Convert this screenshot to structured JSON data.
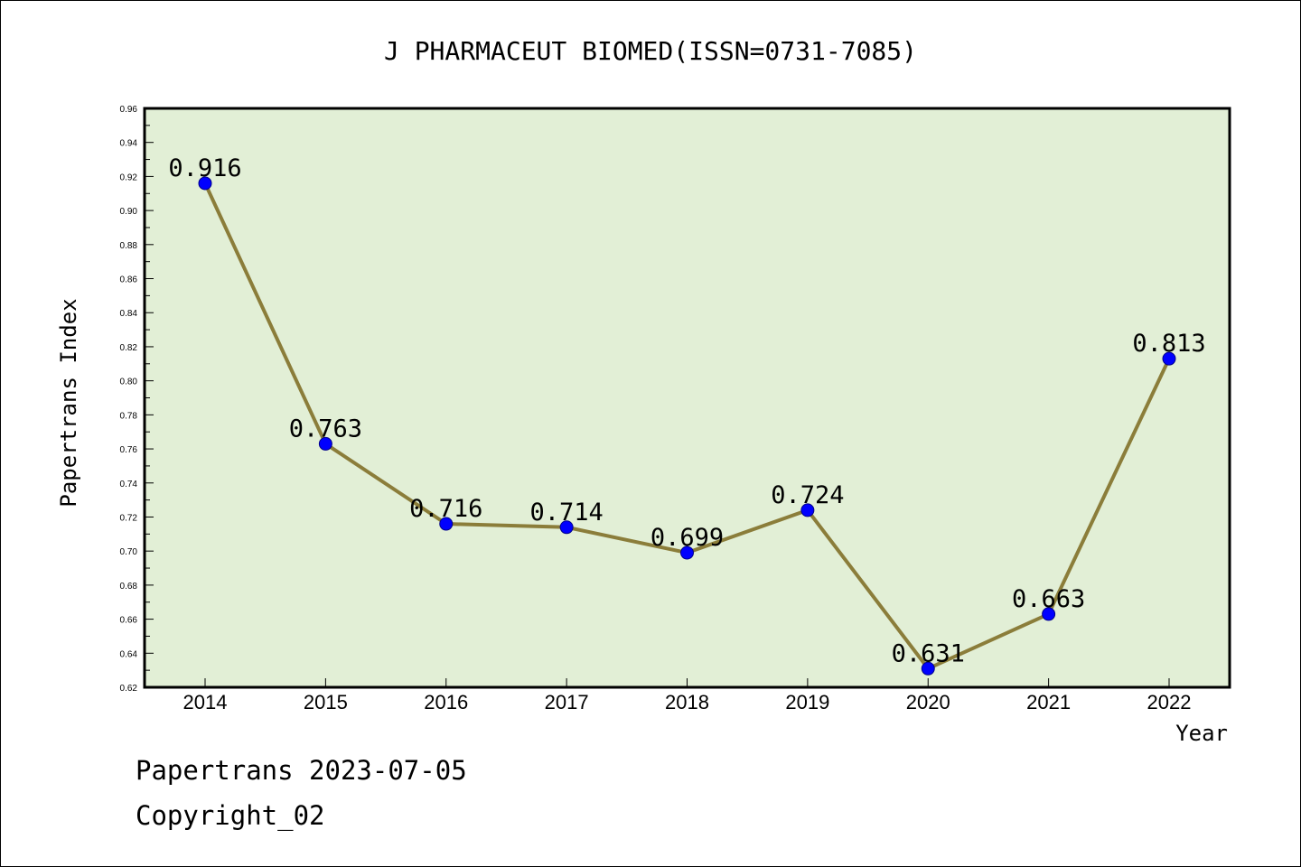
{
  "chart_data": {
    "type": "line",
    "title": "J PHARMACEUT BIOMED(ISSN=0731-7085)",
    "xlabel": "Year",
    "ylabel": "Papertrans Index",
    "categories": [
      "2014",
      "2015",
      "2016",
      "2017",
      "2018",
      "2019",
      "2020",
      "2021",
      "2022"
    ],
    "series": [
      {
        "values": [
          0.916,
          0.763,
          0.716,
          0.714,
          0.699,
          0.724,
          0.631,
          0.663,
          0.813
        ],
        "labels": [
          "0.916",
          "0.763",
          "0.716",
          "0.714",
          "0.699",
          "0.724",
          "0.631",
          "0.663",
          "0.813"
        ]
      }
    ],
    "ylim": [
      0.62,
      0.96
    ],
    "y_ticks": [
      "0.62",
      "0.64",
      "0.66",
      "0.68",
      "0.70",
      "0.72",
      "0.74",
      "0.76",
      "0.78",
      "0.80",
      "0.82",
      "0.84",
      "0.86",
      "0.88",
      "0.90",
      "0.92",
      "0.94",
      "0.96"
    ],
    "grid": false,
    "colors": {
      "plot_background": "#e2efd6",
      "line": "#8b7d3a",
      "marker": "#0000ff",
      "marker_edge": "#00008b"
    }
  },
  "footer": {
    "line1": "Papertrans 2023-07-05",
    "line2": "Copyright_02"
  }
}
